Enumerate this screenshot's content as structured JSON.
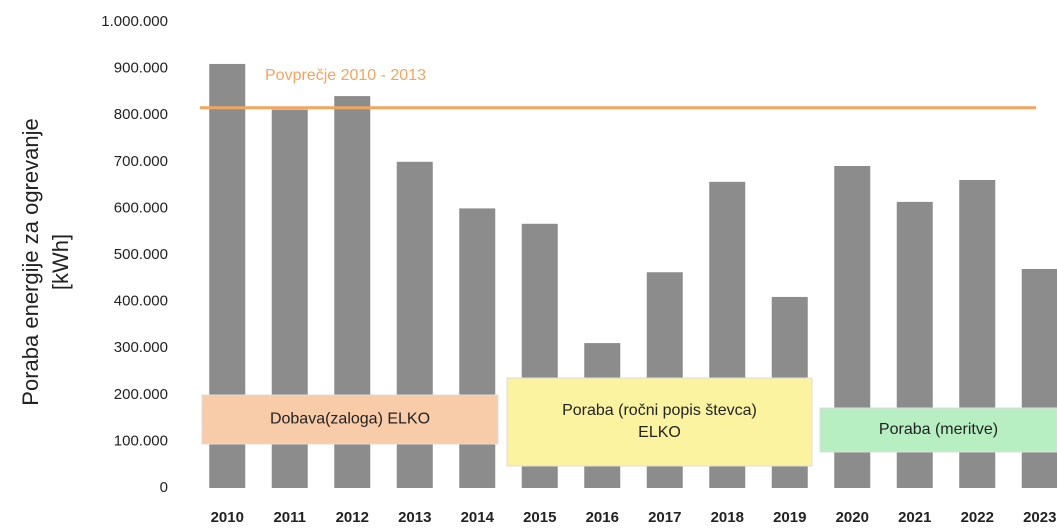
{
  "chart_data": {
    "type": "bar",
    "ylabel": [
      "Poraba energije za ogrevanje",
      "[kWh]"
    ],
    "categories": [
      "2010",
      "2011",
      "2012",
      "2013",
      "2014",
      "2015",
      "2016",
      "2017",
      "2018",
      "2019",
      "2020",
      "2021",
      "2022",
      "2023"
    ],
    "values": [
      910000,
      812000,
      841000,
      700000,
      600000,
      567000,
      311000,
      463000,
      657000,
      410000,
      691000,
      614000,
      661000,
      470000
    ],
    "color": "#8c8c8c",
    "ylim": [
      0,
      1000000
    ],
    "yticks": [
      0,
      {
        "value": 100000,
        "label": "100.000"
      },
      {
        "value": 200000,
        "label": "200.000"
      },
      {
        "value": 300000,
        "label": "300.000"
      },
      {
        "value": 400000,
        "label": "400.000"
      },
      {
        "value": 500000,
        "label": "500.000"
      },
      {
        "value": 600000,
        "label": "600.000"
      },
      {
        "value": 700000,
        "label": "700.000"
      },
      {
        "value": 800000,
        "label": "800.000"
      },
      {
        "value": 900000,
        "label": "900.000"
      },
      {
        "value": 1000000,
        "label": "1.000.000"
      }
    ],
    "average": {
      "label": "Povprečje 2010 - 2013",
      "value": 816000,
      "color": "#f2a55e"
    },
    "annotations": [
      {
        "lines": [
          "Dobava(zaloga) ELKO"
        ],
        "color": "#f8cba9"
      },
      {
        "lines": [
          "Poraba (ročni popis števca)",
          "ELKO"
        ],
        "color": "#fbf3a0"
      },
      {
        "lines": [
          "Poraba (meritve)"
        ],
        "color": "#b7efc2"
      }
    ]
  }
}
